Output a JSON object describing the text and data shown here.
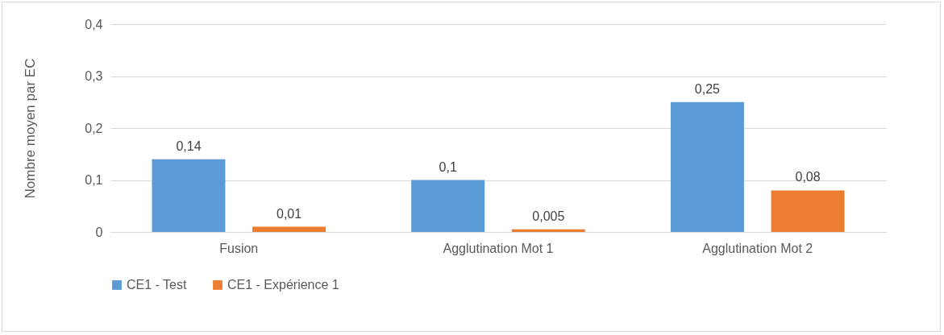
{
  "chart_data": {
    "type": "bar",
    "ylabel": "Nombre moyen par EC",
    "categories": [
      "Fusion",
      "Agglutination Mot 1",
      "Agglutination Mot 2"
    ],
    "series": [
      {
        "name": "CE1 - Test",
        "color": "#5b9bd5",
        "values": [
          0.14,
          0.1,
          0.25
        ],
        "value_labels": [
          "0,14",
          "0,1",
          "0,25"
        ]
      },
      {
        "name": "CE1 - Expérience 1",
        "color": "#ed7d31",
        "values": [
          0.01,
          0.005,
          0.08
        ],
        "value_labels": [
          "0,01",
          "0,005",
          "0,08"
        ]
      }
    ],
    "ylim": [
      0,
      0.4
    ],
    "yticks": [
      0,
      {
        "value": 0.1,
        "label": "0,1"
      },
      {
        "value": 0.2,
        "label": "0,2"
      },
      {
        "value": 0.3,
        "label": "0,3"
      },
      {
        "value": 0.4,
        "label": "0,4"
      }
    ],
    "grid": "y",
    "legend": "bottom"
  }
}
